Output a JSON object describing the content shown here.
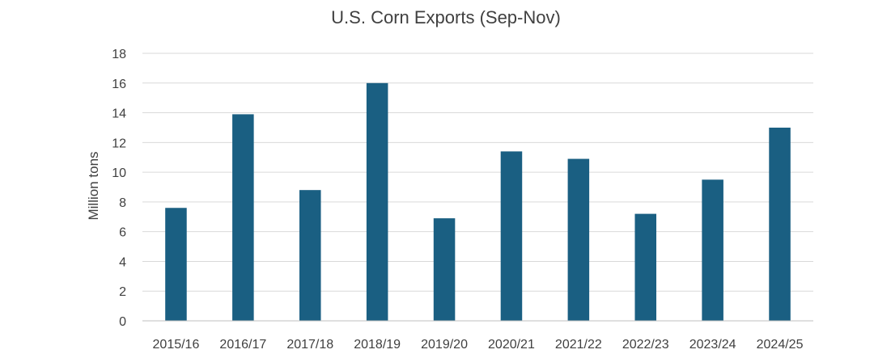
{
  "chart_data": {
    "type": "bar",
    "title": "U.S. Corn Exports (Sep-Nov)",
    "xlabel": "",
    "ylabel": "Million tons",
    "categories": [
      "2015/16",
      "2016/17",
      "2017/18",
      "2018/19",
      "2019/20",
      "2020/21",
      "2021/22",
      "2022/23",
      "2023/24",
      "2024/25"
    ],
    "values": [
      7.6,
      13.9,
      8.8,
      16.0,
      6.9,
      11.4,
      10.9,
      7.2,
      9.5,
      13.0
    ],
    "ylim": [
      0,
      18
    ],
    "yticks": [
      0,
      2,
      4,
      6,
      8,
      10,
      12,
      14,
      16,
      18
    ],
    "grid": true,
    "legend": "none",
    "bar_color": "#1a5f82",
    "grid_color": "#d9d9d9",
    "text_color": "#404040"
  }
}
